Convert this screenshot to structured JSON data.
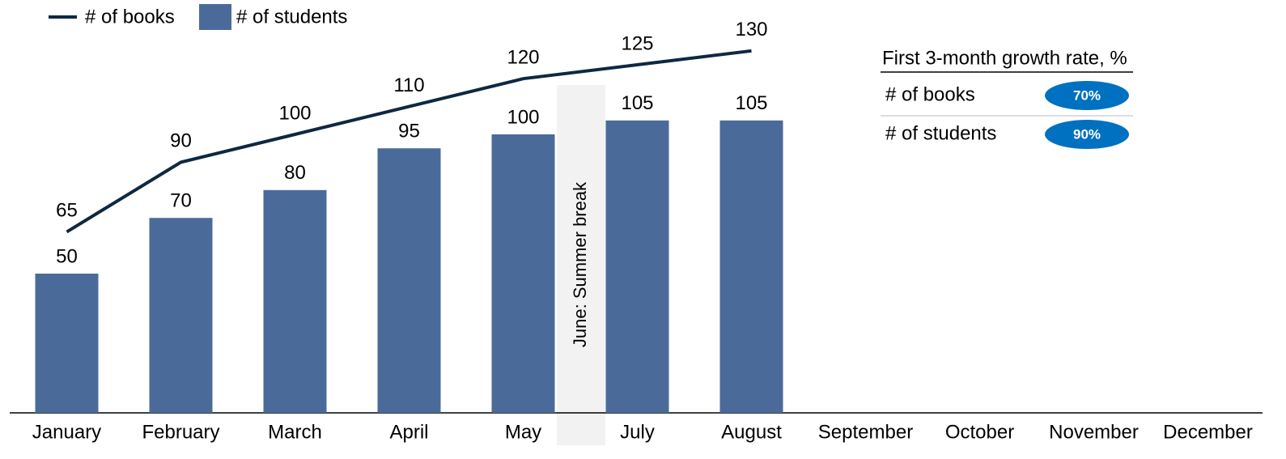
{
  "chart_data": {
    "type": "bar",
    "categories": [
      "January",
      "February",
      "March",
      "April",
      "May",
      "July",
      "August",
      "September",
      "October",
      "November",
      "December"
    ],
    "series": [
      {
        "name": "# of books",
        "type": "line",
        "color": "#0e2841",
        "values": [
          65,
          90,
          100,
          110,
          120,
          125,
          130,
          null,
          null,
          null,
          null
        ]
      },
      {
        "name": "# of students",
        "type": "bar",
        "color": "#4a6b9a",
        "values": [
          50,
          70,
          80,
          95,
          100,
          105,
          105,
          null,
          null,
          null,
          null
        ]
      }
    ],
    "break_label": "June: Summer break"
  },
  "growth_table": {
    "title": "First 3-month growth rate, %",
    "rows": [
      {
        "label": "# of books",
        "value": "70%"
      },
      {
        "label": "# of students",
        "value": "90%"
      }
    ]
  }
}
